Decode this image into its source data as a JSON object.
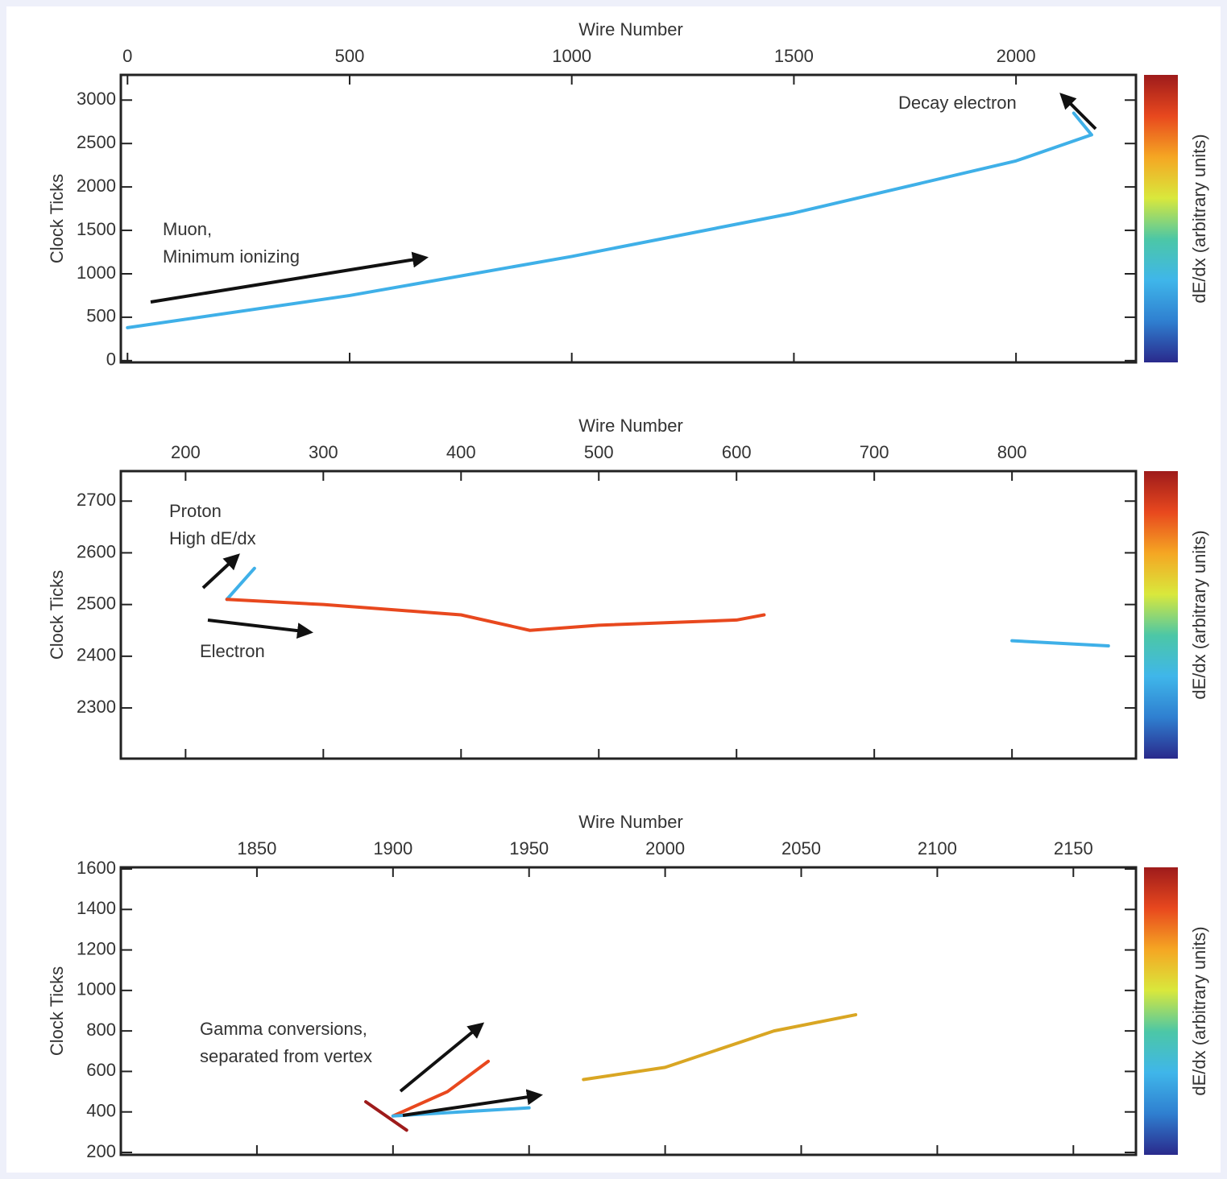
{
  "chart_data": [
    {
      "type": "line",
      "title": "Wire Number",
      "y_label": "Clock Ticks",
      "colorbar_label": "dE/dx (arbitrary units)",
      "colormap": [
        "#2a2a8c",
        "#2f7fd0",
        "#3fb6ea",
        "#4cc7a6",
        "#d9e83c",
        "#f5a623",
        "#e8481e",
        "#9e1b1b"
      ],
      "xlim": [
        -15,
        2270
      ],
      "xticks": [
        0,
        500,
        1000,
        1500,
        2000
      ],
      "ylim": [
        -20,
        3290
      ],
      "yticks": [
        0,
        500,
        1000,
        1500,
        2000,
        2500,
        3000
      ],
      "tracks": [
        {
          "color": "#3fb0e8",
          "x": [
            0,
            500,
            1000,
            1500,
            2000,
            2170
          ],
          "y": [
            380,
            750,
            1200,
            1700,
            2300,
            2600
          ]
        },
        {
          "color": "#3fb0e8",
          "x": [
            2170,
            2130
          ],
          "y": [
            2600,
            2850
          ]
        }
      ],
      "annotations": [
        {
          "lines": [
            "Muon,",
            "Minimum ionizing"
          ]
        },
        {
          "lines": [
            "Decay electron"
          ]
        }
      ]
    },
    {
      "type": "line",
      "title": "Wire Number",
      "y_label": "Clock Ticks",
      "colorbar_label": "dE/dx (arbitrary units)",
      "colormap": [
        "#2a2a8c",
        "#2f7fd0",
        "#3fb6ea",
        "#4cc7a6",
        "#d9e83c",
        "#f5a623",
        "#e8481e",
        "#9e1b1b"
      ],
      "xlim": [
        153,
        890
      ],
      "xticks": [
        200,
        300,
        400,
        500,
        600,
        700,
        800
      ],
      "ylim": [
        2202,
        2758
      ],
      "yticks": [
        2300,
        2400,
        2500,
        2600,
        2700
      ],
      "tracks": [
        {
          "color": "#3fb0e8",
          "x": [
            230,
            250
          ],
          "y": [
            2510,
            2570
          ]
        },
        {
          "color": "#e8481e",
          "x": [
            230,
            300,
            400,
            450,
            500,
            600,
            620
          ],
          "y": [
            2510,
            2500,
            2480,
            2450,
            2460,
            2470,
            2480
          ]
        },
        {
          "color": "#3fb0e8",
          "x": [
            800,
            870
          ],
          "y": [
            2430,
            2420
          ]
        }
      ],
      "annotations": [
        {
          "lines": [
            "Proton",
            "High dE/dx"
          ]
        },
        {
          "lines": [
            "Electron"
          ]
        }
      ]
    },
    {
      "type": "line",
      "title": "Wire Number",
      "y_label": "Clock Ticks",
      "colorbar_label": "dE/dx (arbitrary units)",
      "colormap": [
        "#2a2a8c",
        "#2f7fd0",
        "#3fb6ea",
        "#4cc7a6",
        "#d9e83c",
        "#f5a623",
        "#e8481e",
        "#9e1b1b"
      ],
      "xlim": [
        1800,
        2173
      ],
      "xticks": [
        1850,
        1900,
        1950,
        2000,
        2050,
        2100,
        2150
      ],
      "ylim": [
        188,
        1608
      ],
      "yticks": [
        200,
        400,
        600,
        800,
        1000,
        1200,
        1400,
        1600
      ],
      "tracks": [
        {
          "color": "#9e1b1b",
          "x": [
            1890,
            1905
          ],
          "y": [
            450,
            310
          ]
        },
        {
          "color": "#e8481e",
          "x": [
            1900,
            1920,
            1935
          ],
          "y": [
            380,
            500,
            650
          ]
        },
        {
          "color": "#3fb0e8",
          "x": [
            1900,
            1950
          ],
          "y": [
            380,
            420
          ]
        },
        {
          "color": "#d9a623",
          "x": [
            1970,
            2000,
            2040,
            2070
          ],
          "y": [
            560,
            620,
            800,
            880
          ]
        }
      ],
      "annotations": [
        {
          "lines": [
            "Gamma conversions,",
            "separated from vertex"
          ]
        }
      ]
    }
  ]
}
